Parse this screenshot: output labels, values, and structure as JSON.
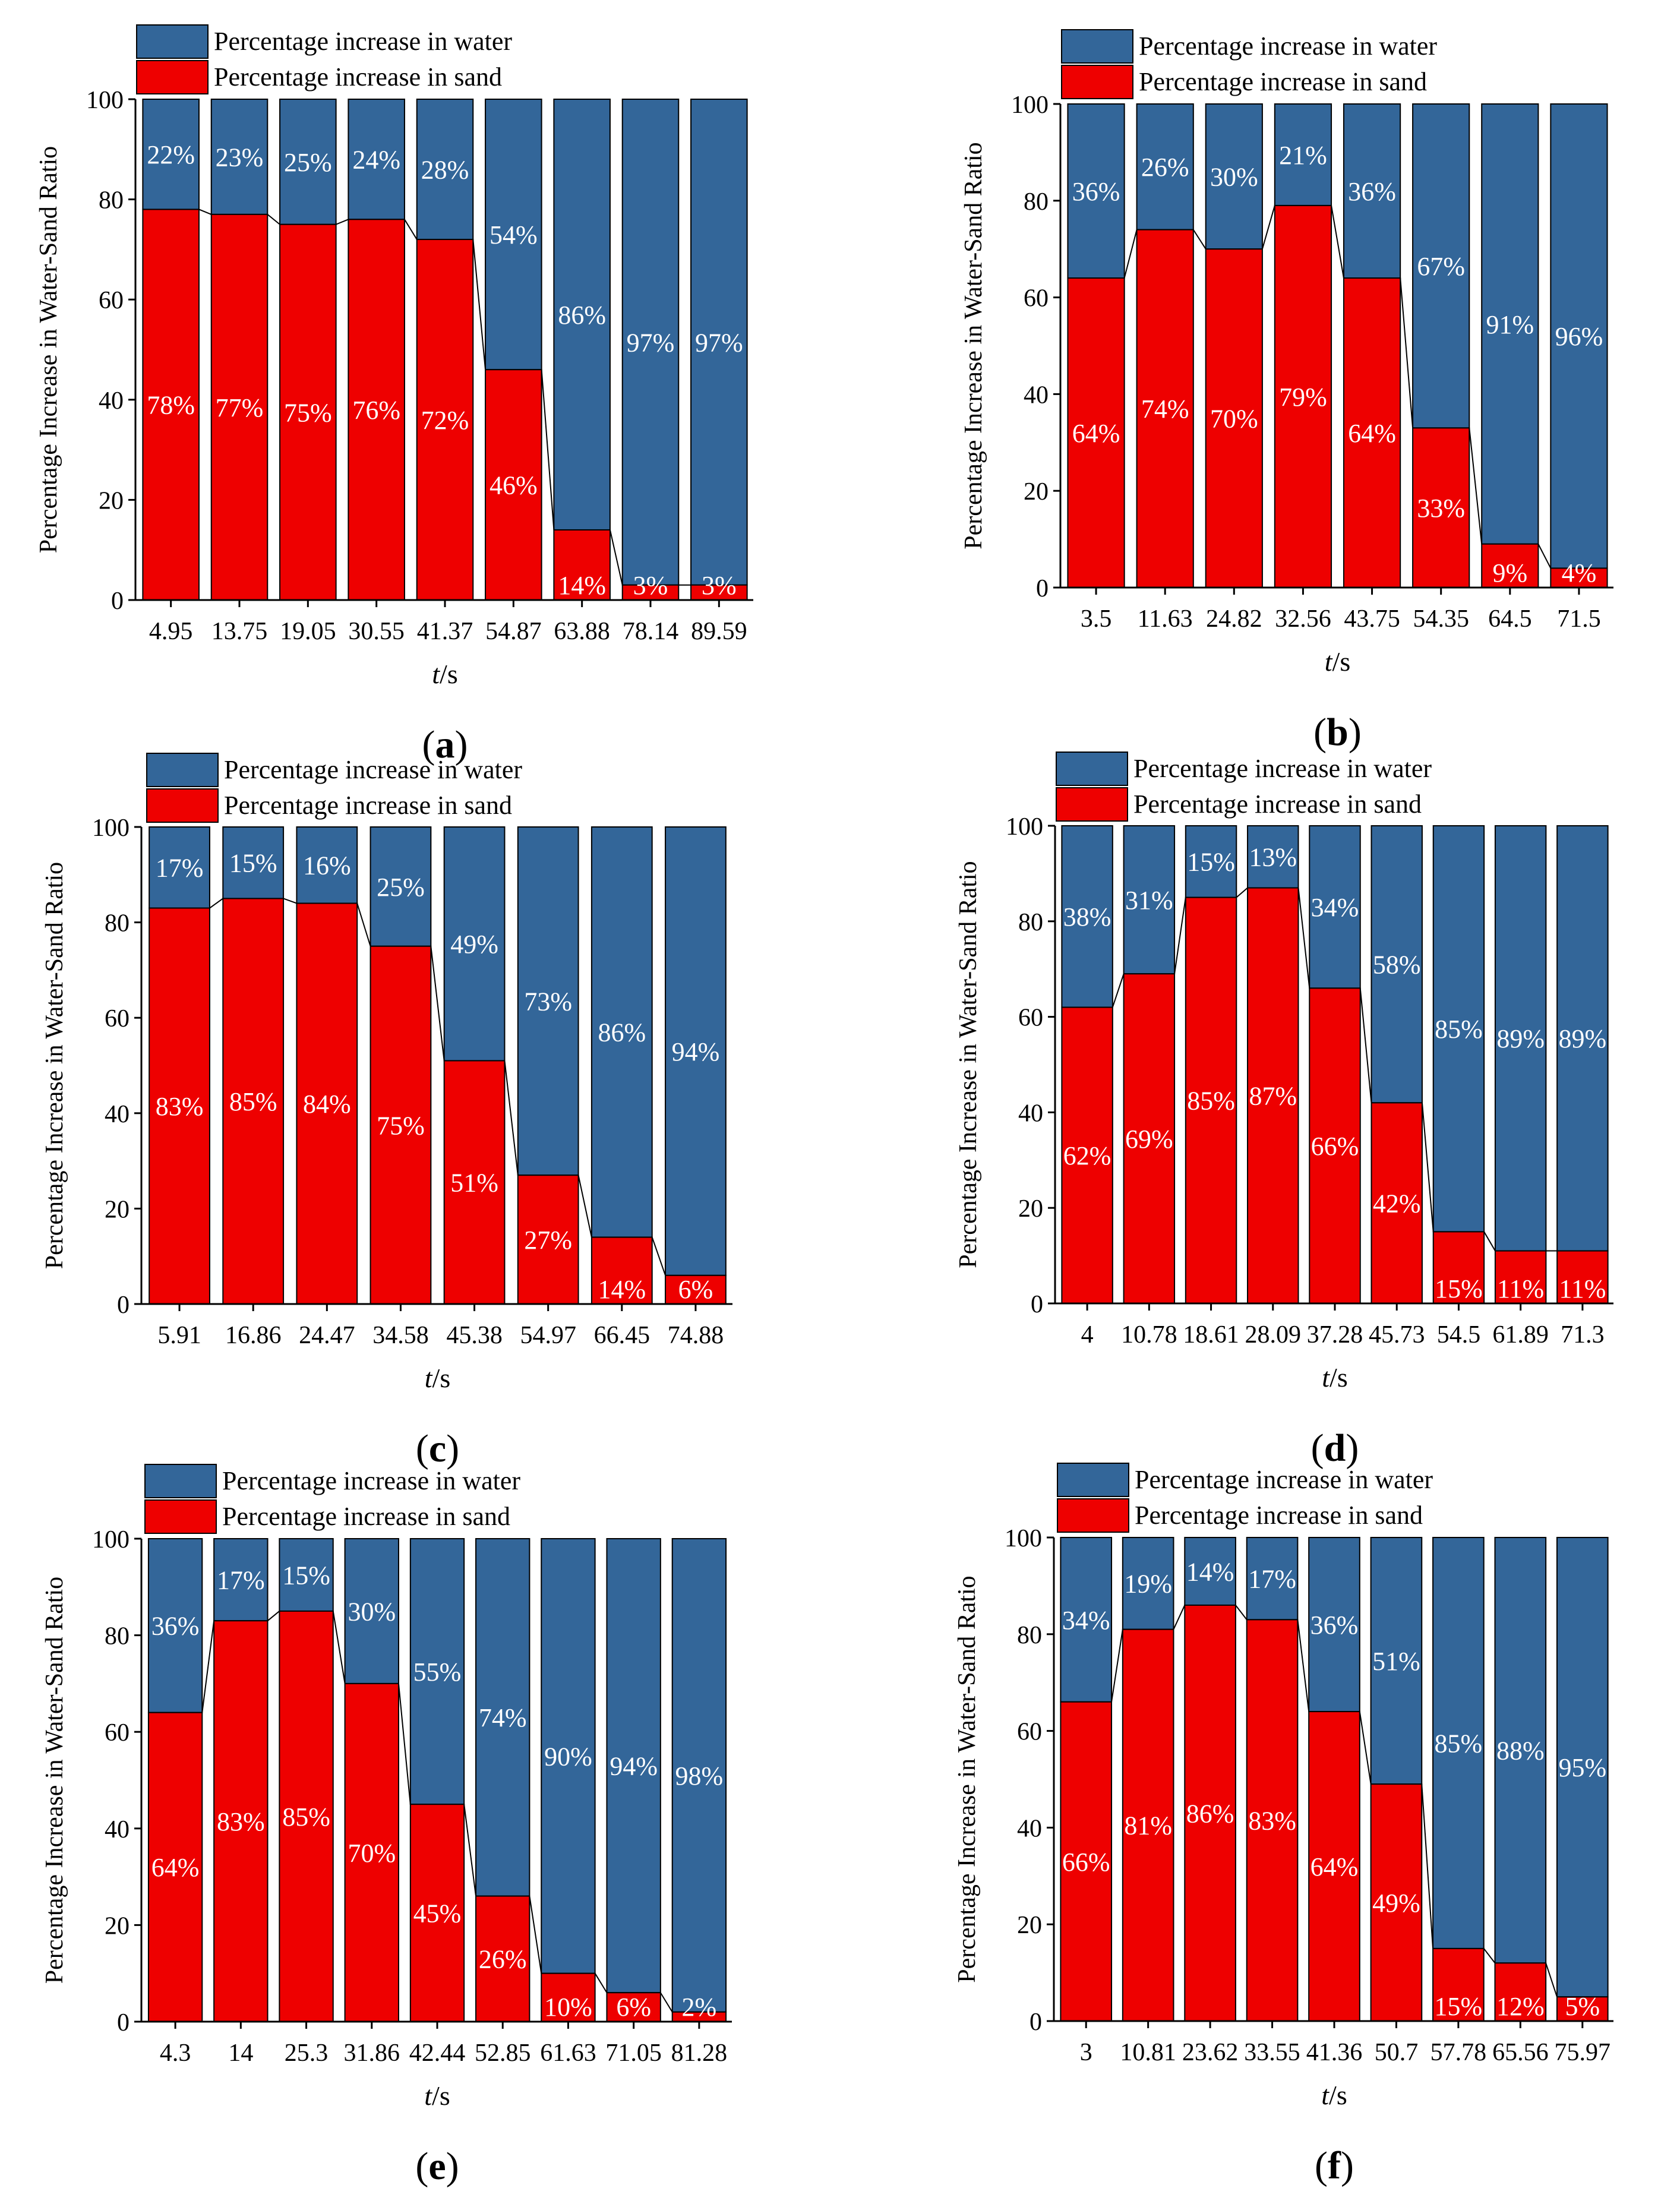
{
  "figure": {
    "colors": {
      "water": "#336699",
      "sand": "#EE0000",
      "axis": "#000000",
      "value_label": "#ffffff"
    }
  },
  "chart_data": [
    {
      "panel": "(a)",
      "type": "bar",
      "stacked": true,
      "categories": [
        "4.95",
        "13.75",
        "19.05",
        "30.55",
        "41.37",
        "54.87",
        "63.88",
        "78.14",
        "89.59"
      ],
      "series": [
        {
          "name": "Percentage increase in sand",
          "values": [
            78,
            77,
            75,
            76,
            72,
            46,
            14,
            3,
            3
          ],
          "labels": [
            "78%",
            "77%",
            "75%",
            "76%",
            "72%",
            "46%",
            "14%",
            "3%",
            "3%"
          ]
        },
        {
          "name": "Percentage increase in water",
          "values": [
            22,
            23,
            25,
            24,
            28,
            54,
            86,
            97,
            97
          ],
          "labels": [
            "22%",
            "23%",
            "25%",
            "24%",
            "28%",
            "54%",
            "86%",
            "97%",
            "97%"
          ]
        }
      ],
      "xlabel_italic": "t",
      "xlabel_unit": "/s",
      "ylabel": "Percentage Increase in Water-Sand Ratio",
      "ylim": [
        0,
        100
      ],
      "yticks": [
        "0",
        "20",
        "40",
        "60",
        "80",
        "100"
      ],
      "legend_position": "top-left"
    },
    {
      "panel": "(b)",
      "type": "bar",
      "stacked": true,
      "categories": [
        "3.5",
        "11.63",
        "24.82",
        "32.56",
        "43.75",
        "54.35",
        "64.5",
        "71.5"
      ],
      "series": [
        {
          "name": "Percentage increase in sand",
          "values": [
            64,
            74,
            70,
            79,
            64,
            33,
            9,
            4
          ],
          "labels": [
            "64%",
            "74%",
            "70%",
            "79%",
            "64%",
            "33%",
            "9%",
            "4%"
          ]
        },
        {
          "name": "Percentage increase in water",
          "values": [
            36,
            26,
            30,
            21,
            36,
            67,
            91,
            96
          ],
          "labels": [
            "36%",
            "26%",
            "30%",
            "21%",
            "36%",
            "67%",
            "91%",
            "96%"
          ]
        }
      ],
      "xlabel_italic": "t",
      "xlabel_unit": "/s",
      "ylabel": "Percentage Increase in Water-Sand Ratio",
      "ylim": [
        0,
        100
      ],
      "yticks": [
        "0",
        "20",
        "40",
        "60",
        "80",
        "100"
      ],
      "legend_position": "top-left"
    },
    {
      "panel": "(c)",
      "type": "bar",
      "stacked": true,
      "categories": [
        "5.91",
        "16.86",
        "24.47",
        "34.58",
        "45.38",
        "54.97",
        "66.45",
        "74.88"
      ],
      "series": [
        {
          "name": "Percentage increase in sand",
          "values": [
            83,
            85,
            84,
            75,
            51,
            27,
            14,
            6
          ],
          "labels": [
            "83%",
            "85%",
            "84%",
            "75%",
            "51%",
            "27%",
            "14%",
            "6%"
          ]
        },
        {
          "name": "Percentage increase in water",
          "values": [
            17,
            15,
            16,
            25,
            49,
            73,
            86,
            94
          ],
          "labels": [
            "17%",
            "15%",
            "16%",
            "25%",
            "49%",
            "73%",
            "86%",
            "94%"
          ]
        }
      ],
      "xlabel_italic": "t",
      "xlabel_unit": "/s",
      "ylabel": "Percentage Increase in Water-Sand Ratio",
      "ylim": [
        0,
        100
      ],
      "yticks": [
        "0",
        "20",
        "40",
        "60",
        "80",
        "100"
      ],
      "legend_position": "top-left"
    },
    {
      "panel": "(d)",
      "type": "bar",
      "stacked": true,
      "categories": [
        "4",
        "10.78",
        "18.61",
        "28.09",
        "37.28",
        "45.73",
        "54.5",
        "61.89",
        "71.3"
      ],
      "series": [
        {
          "name": "Percentage increase in sand",
          "values": [
            62,
            69,
            85,
            87,
            66,
            42,
            15,
            11,
            11
          ],
          "labels": [
            "62%",
            "69%",
            "85%",
            "87%",
            "66%",
            "42%",
            "15%",
            "11%",
            "11%"
          ]
        },
        {
          "name": "Percentage increase in water",
          "values": [
            38,
            31,
            15,
            13,
            34,
            58,
            85,
            89,
            89
          ],
          "labels": [
            "38%",
            "31%",
            "15%",
            "13%",
            "34%",
            "58%",
            "85%",
            "89%",
            "89%"
          ]
        }
      ],
      "xlabel_italic": "t",
      "xlabel_unit": "/s",
      "ylabel": "Percentage Increase in Water-Sand Ratio",
      "ylim": [
        0,
        100
      ],
      "yticks": [
        "0",
        "20",
        "40",
        "60",
        "80",
        "100"
      ],
      "legend_position": "top-left"
    },
    {
      "panel": "(e)",
      "type": "bar",
      "stacked": true,
      "categories": [
        "4.3",
        "14",
        "25.3",
        "31.86",
        "42.44",
        "52.85",
        "61.63",
        "71.05",
        "81.28"
      ],
      "series": [
        {
          "name": "Percentage increase in sand",
          "values": [
            64,
            83,
            85,
            70,
            45,
            26,
            10,
            6,
            2
          ],
          "labels": [
            "64%",
            "83%",
            "85%",
            "70%",
            "45%",
            "26%",
            "10%",
            "6%",
            "2%"
          ]
        },
        {
          "name": "Percentage increase in water",
          "values": [
            36,
            17,
            15,
            30,
            55,
            74,
            90,
            94,
            98
          ],
          "labels": [
            "36%",
            "17%",
            "15%",
            "30%",
            "55%",
            "74%",
            "90%",
            "94%",
            "98%"
          ]
        }
      ],
      "xlabel_italic": "t",
      "xlabel_unit": "/s",
      "ylabel": "Percentage Increase in Water-Sand Ratio",
      "ylim": [
        0,
        100
      ],
      "yticks": [
        "0",
        "20",
        "40",
        "60",
        "80",
        "100"
      ],
      "legend_position": "top-left"
    },
    {
      "panel": "(f)",
      "type": "bar",
      "stacked": true,
      "categories": [
        "3",
        "10.81",
        "23.62",
        "33.55",
        "41.36",
        "50.7",
        "57.78",
        "65.56",
        "75.97"
      ],
      "series": [
        {
          "name": "Percentage increase in sand",
          "values": [
            66,
            81,
            86,
            83,
            64,
            49,
            15,
            12,
            5
          ],
          "labels": [
            "66%",
            "81%",
            "86%",
            "83%",
            "64%",
            "49%",
            "15%",
            "12%",
            "5%"
          ]
        },
        {
          "name": "Percentage increase in water",
          "values": [
            34,
            19,
            14,
            17,
            36,
            51,
            85,
            88,
            95
          ],
          "labels": [
            "34%",
            "19%",
            "14%",
            "17%",
            "36%",
            "51%",
            "85%",
            "88%",
            "95%"
          ]
        }
      ],
      "xlabel_italic": "t",
      "xlabel_unit": "/s",
      "ylabel": "Percentage Increase in Water-Sand Ratio",
      "ylim": [
        0,
        100
      ],
      "yticks": [
        "0",
        "20",
        "40",
        "60",
        "80",
        "100"
      ],
      "legend_position": "top-left"
    }
  ]
}
